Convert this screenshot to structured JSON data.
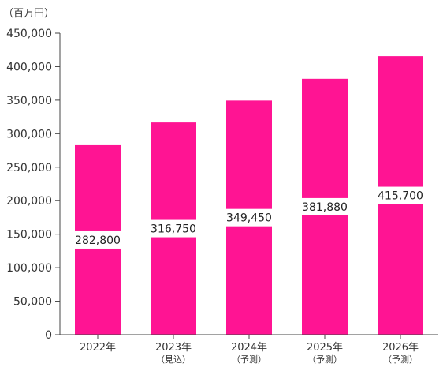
{
  "unit_label": "（百万円）",
  "colors": {
    "bar": "#FF1493",
    "axis": "#444444",
    "label_bg": "#FFFFFF"
  },
  "chart_data": {
    "type": "bar",
    "categories": [
      {
        "year": "2022年",
        "note": ""
      },
      {
        "year": "2023年",
        "note": "（見込）"
      },
      {
        "year": "2024年",
        "note": "（予測）"
      },
      {
        "year": "2025年",
        "note": "（予測）"
      },
      {
        "year": "2026年",
        "note": "（予測）"
      }
    ],
    "values": [
      282800,
      316750,
      349450,
      381880,
      415700
    ],
    "data_labels": [
      "282,800",
      "316,750",
      "349,450",
      "381,880",
      "415,700"
    ],
    "ylim": [
      0,
      450000
    ],
    "yticks": [
      0,
      50000,
      100000,
      150000,
      200000,
      250000,
      300000,
      350000,
      400000,
      450000
    ],
    "ytick_labels": [
      "0",
      "50,000",
      "100,000",
      "150,000",
      "200,000",
      "250,000",
      "300,000",
      "350,000",
      "400,000",
      "450,000"
    ],
    "title": "",
    "xlabel": "",
    "ylabel": "",
    "grid": false,
    "legend": "none"
  }
}
